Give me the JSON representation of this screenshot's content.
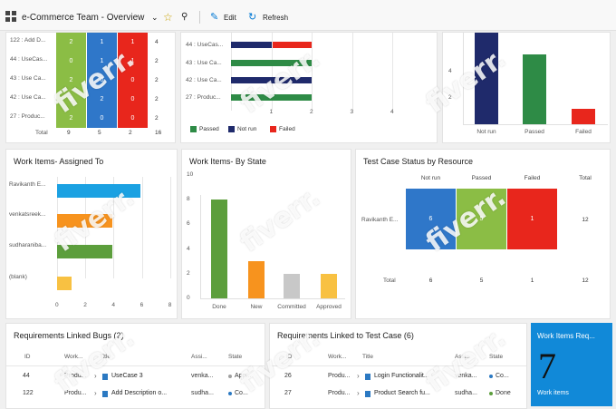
{
  "toolbar": {
    "title": "e-Commerce Team - Overview",
    "edit": "Edit",
    "refresh": "Refresh",
    "accent": "#0078d4"
  },
  "top_left_table": {
    "rows": [
      {
        "label": "122 : Add D...",
        "c1": "2",
        "c2": "1",
        "c3": "1",
        "total": "4"
      },
      {
        "label": "44 : UseCas...",
        "c1": "0",
        "c2": "1",
        "c3": "1",
        "total": "2"
      },
      {
        "label": "43 : Use Ca...",
        "c1": "2",
        "c2": "0",
        "c3": "0",
        "total": "2"
      },
      {
        "label": "42 : Use Ca...",
        "c1": "0",
        "c2": "2",
        "c3": "0",
        "total": "2"
      },
      {
        "label": "27 : Produc...",
        "c1": "2",
        "c2": "0",
        "c3": "0",
        "total": "2"
      }
    ],
    "total_label": "Total",
    "totals": [
      "9",
      "5",
      "2",
      "16"
    ],
    "colors": [
      "#8bbd45",
      "#2f77c9",
      "#e8261c"
    ]
  },
  "top_mid_chart": {
    "row_labels": [
      "44 : UseCas...",
      "43 : Use Ca...",
      "42 : Use Ca...",
      "27 : Produc..."
    ],
    "ticks": [
      "1",
      "2",
      "3",
      "4"
    ],
    "legend": [
      {
        "label": "Passed",
        "color": "#2e8b46"
      },
      {
        "label": "Not run",
        "color": "#1f2a6b"
      },
      {
        "label": "Failed",
        "color": "#e8261c"
      }
    ]
  },
  "top_right_chart": {
    "categories": [
      "Not run",
      "Passed",
      "Failed"
    ],
    "values": [
      7,
      5.3,
      1.2
    ],
    "ticks": [
      "4",
      "2"
    ],
    "colors": [
      "#1f2a6b",
      "#2e8b46",
      "#e8261c"
    ]
  },
  "assigned": {
    "title": "Work Items- Assigned To",
    "labels": [
      "Ravikanth E...",
      "venkatsreek...",
      "sudharaniba...",
      "(blank)"
    ],
    "values": [
      5.9,
      3.9,
      3.9,
      1.0
    ],
    "colors": [
      "#1ba1e2",
      "#f7931e",
      "#5c9e3c",
      "#f8c142"
    ],
    "ticks": [
      "0",
      "2",
      "4",
      "6",
      "8"
    ]
  },
  "by_state": {
    "title": "Work Items- By State",
    "categories": [
      "Done",
      "New",
      "Committed",
      "Approved"
    ],
    "values": [
      8,
      3,
      2,
      2
    ],
    "colors": [
      "#5c9e3c",
      "#f7931e",
      "#c8c8c8",
      "#f8c142"
    ],
    "ticks": [
      "10",
      "8",
      "6",
      "4",
      "2",
      "0"
    ]
  },
  "resource": {
    "title": "Test Case Status by Resource",
    "headers": [
      "Not run",
      "Passed",
      "Failed",
      "Total"
    ],
    "row_label": "Ravikanth E...",
    "row_values": [
      "6",
      "5",
      "1",
      "12"
    ],
    "total_label": "Total",
    "total_values": [
      "6",
      "5",
      "1",
      "12"
    ],
    "colors": [
      "#2f77c9",
      "#8bbd45",
      "#e8261c"
    ]
  },
  "req_bugs": {
    "title": "Requirements Linked Bugs (2)",
    "headers": [
      "ID",
      "Work...",
      "Title",
      "Assi...",
      "State"
    ],
    "rows": [
      {
        "id": "44",
        "work": "Produ...",
        "title": "UseCase 3",
        "assignee": "venka...",
        "state": "App..."
      },
      {
        "id": "122",
        "work": "Produ...",
        "title": "Add Description o...",
        "assignee": "sudha...",
        "state": "Co..."
      }
    ]
  },
  "req_tests": {
    "title": "Requirements Linked to Test Case (6)",
    "headers": [
      "ID",
      "Work...",
      "Title",
      "Assi...",
      "State"
    ],
    "rows": [
      {
        "id": "26",
        "work": "Produ...",
        "title": "Login Functionalit...",
        "assignee": "venka...",
        "state": "Co..."
      },
      {
        "id": "27",
        "work": "Produ...",
        "title": "Product Search fu...",
        "assignee": "sudha...",
        "state": "Done"
      }
    ]
  },
  "tile": {
    "title": "Work Items Req...",
    "count": "7",
    "caption": "Work items",
    "color": "#1189d8"
  },
  "watermark": "fiverr."
}
